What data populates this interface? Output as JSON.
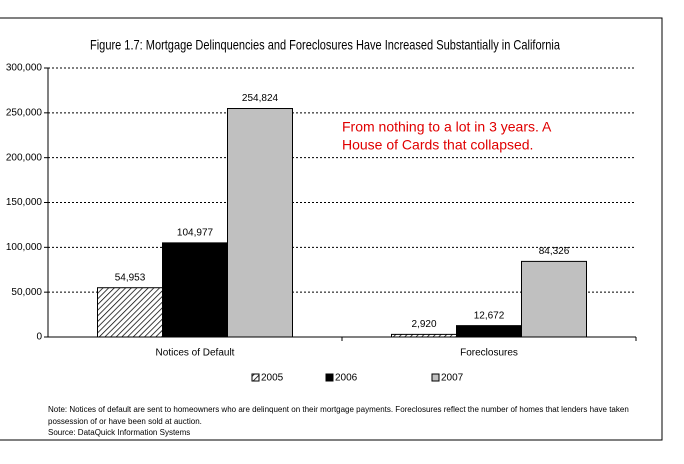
{
  "chart_data": {
    "type": "bar",
    "title": "Figure 1.7: Mortgage Delinquencies and Foreclosures Have Increased Substantially in California",
    "categories": [
      "Notices of Default",
      "Foreclosures"
    ],
    "series": [
      {
        "name": "2005",
        "color": "#ffffff",
        "pattern": "hatch",
        "values": [
          54953,
          2920
        ],
        "value_labels": [
          "54,953",
          "2,920"
        ]
      },
      {
        "name": "2006",
        "color": "#000000",
        "values": [
          104977,
          12672
        ],
        "value_labels": [
          "104,977",
          "12,672"
        ]
      },
      {
        "name": "2007",
        "color": "#c0c0c0",
        "values": [
          254824,
          84326
        ],
        "value_labels": [
          "254,824",
          "84,326"
        ]
      }
    ],
    "ylim": [
      0,
      300000
    ],
    "yticks": [
      0,
      {
        "value": 50000,
        "label": "50,000"
      },
      {
        "value": 100000,
        "label": "100,000"
      },
      {
        "value": 150000,
        "label": "150,000"
      },
      {
        "value": 200000,
        "label": "200,000"
      },
      {
        "value": 250000,
        "label": "250,000"
      },
      {
        "value": 300000,
        "label": "300,000"
      }
    ],
    "grid": true,
    "legend": "bottom",
    "annotation": [
      "From nothing to a lot in 3 years.  A",
      "House of Cards that collapsed."
    ],
    "note": [
      "Note: Notices of default are sent to homeowners who are delinquent on their mortgage payments. Foreclosures reflect the number of homes that lenders have taken",
      "possession of or have been sold at auction."
    ],
    "source": "Source: DataQuick Information Systems"
  }
}
